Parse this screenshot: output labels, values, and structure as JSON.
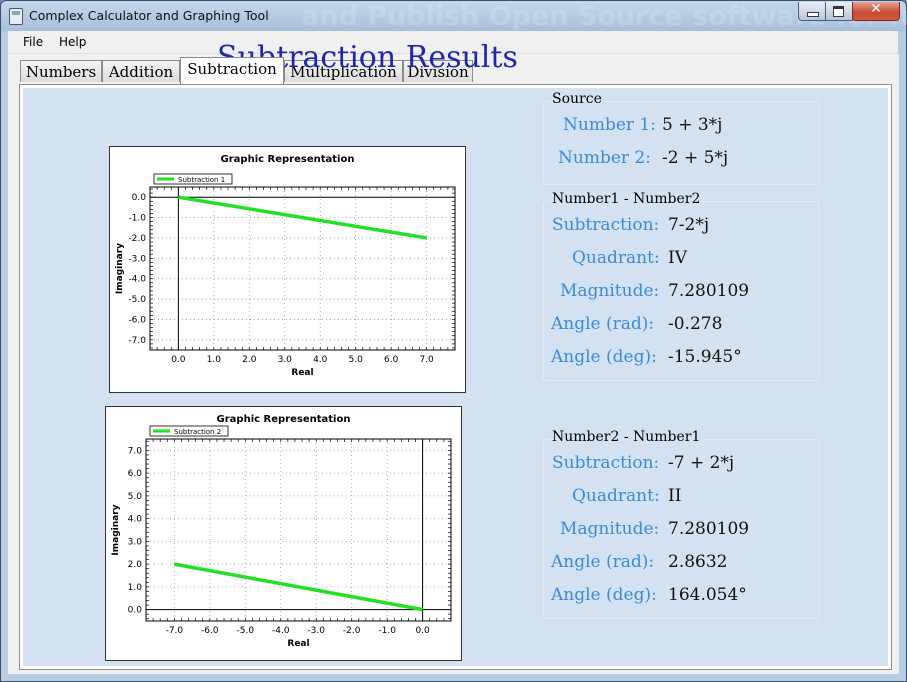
{
  "window": {
    "title": "Complex Calculator and Graphing Tool",
    "watermark": "and Publish Open Source software for free"
  },
  "menu": [
    "File",
    "Help"
  ],
  "tabs": [
    {
      "label": "Numbers",
      "active": false
    },
    {
      "label": "Addition",
      "active": false
    },
    {
      "label": "Subtraction",
      "active": true
    },
    {
      "label": "Multiplication",
      "active": false
    },
    {
      "label": "Division",
      "active": false
    }
  ],
  "heading": "Subtraction Results",
  "source": {
    "title": "Source",
    "number1_label": "Number 1:",
    "number1_value": "5 + 3*j",
    "number2_label": "Number 2:",
    "number2_value": "-2 + 5*j"
  },
  "result1": {
    "title": "Number1 - Number2",
    "subtraction_label": "Subtraction:",
    "subtraction_value": "7-2*j",
    "quadrant_label": "Quadrant:",
    "quadrant_value": "IV",
    "magnitude_label": "Magnitude:",
    "magnitude_value": "7.280109",
    "angle_rad_label": "Angle (rad):",
    "angle_rad_value": "-0.278",
    "angle_deg_label": "Angle (deg):",
    "angle_deg_value": "-15.945°"
  },
  "result2": {
    "title": "Number2 - Number1",
    "subtraction_label": "Subtraction:",
    "subtraction_value": "-7 + 2*j",
    "quadrant_label": "Quadrant:",
    "quadrant_value": "II",
    "magnitude_label": "Magnitude:",
    "magnitude_value": "7.280109",
    "angle_rad_label": "Angle (rad):",
    "angle_rad_value": "2.8632",
    "angle_deg_label": "Angle (deg):",
    "angle_deg_value": "164.054°"
  },
  "colors": {
    "series": "#22e022",
    "label_blue": "#3a8bd6",
    "heading": "#2028a8"
  },
  "chart_data": [
    {
      "type": "line",
      "title": "Graphic Representation",
      "xlabel": "Real",
      "ylabel": "Imaginary",
      "xlim": [
        -0.8,
        7.8
      ],
      "ylim": [
        -7.5,
        0.5
      ],
      "xticks": [
        0,
        1,
        2,
        3,
        4,
        5,
        6,
        7
      ],
      "yticks": [
        0,
        -1,
        -2,
        -3,
        -4,
        -5,
        -6,
        -7
      ],
      "grid": true,
      "legend": "top-left",
      "series": [
        {
          "name": "Subtraction 1",
          "x": [
            0,
            7
          ],
          "y": [
            0,
            -2
          ]
        }
      ]
    },
    {
      "type": "line",
      "title": "Graphic Representation",
      "xlabel": "Real",
      "ylabel": "Imaginary",
      "xlim": [
        -7.8,
        0.8
      ],
      "ylim": [
        -0.5,
        7.5
      ],
      "xticks": [
        -7,
        -6,
        -5,
        -4,
        -3,
        -2,
        -1,
        0
      ],
      "yticks": [
        0,
        1,
        2,
        3,
        4,
        5,
        6,
        7
      ],
      "grid": true,
      "legend": "top-left",
      "series": [
        {
          "name": "Subtraction 2",
          "x": [
            -7,
            0
          ],
          "y": [
            2,
            0
          ]
        }
      ]
    }
  ]
}
